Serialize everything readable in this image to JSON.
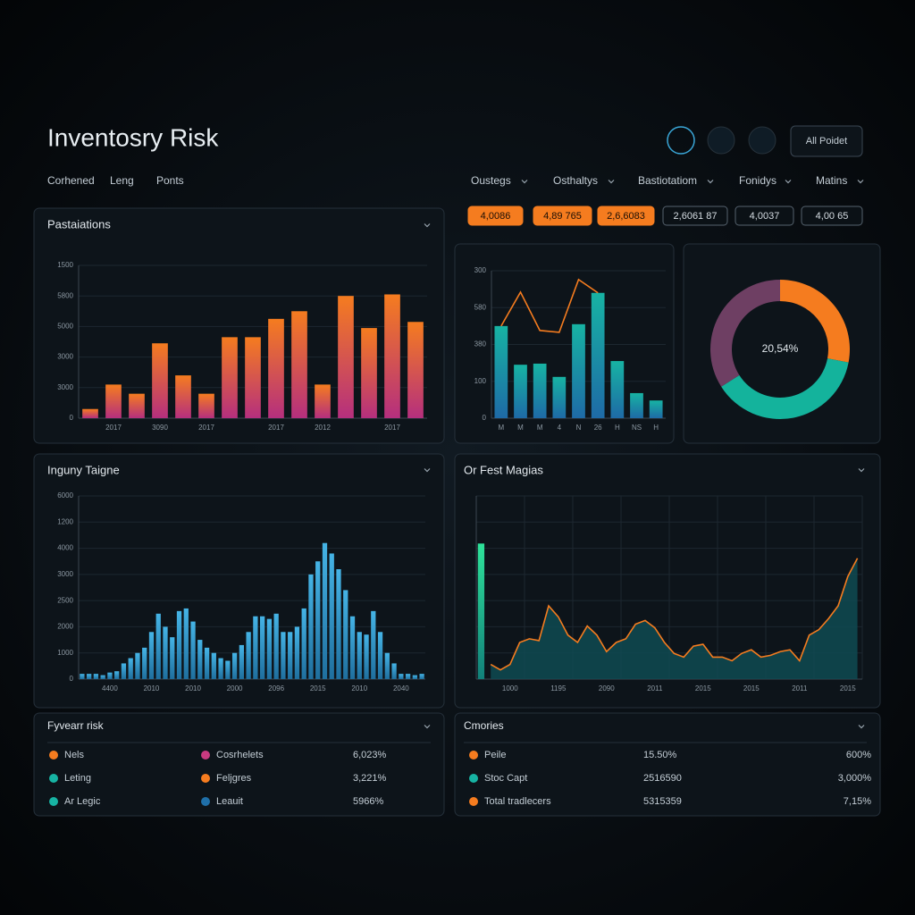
{
  "header": {
    "title": "Inventosry Risk",
    "nav": [
      "Corhened",
      "Leng",
      "Ponts"
    ],
    "button": "All Poidet"
  },
  "filters": [
    "Oustegs",
    "Osthaltys",
    "Bastiotatiom",
    "Fonidys",
    "Matins"
  ],
  "badges": [
    "4,0086",
    "4,89 765",
    "2,6,6083",
    "2,6061 87",
    "4,0037",
    "4,00 65"
  ],
  "chart_data": [
    {
      "type": "bar",
      "title": "Pastaiations",
      "color": "#f57c1f",
      "color2": "#b52f7e",
      "categories": [
        null,
        "2017",
        null,
        "3090",
        null,
        "2017",
        null,
        null,
        "2017",
        null,
        "2012",
        null,
        null,
        "2017",
        null
      ],
      "values": [
        300,
        1100,
        800,
        2450,
        1400,
        800,
        2650,
        2650,
        3250,
        3500,
        1100,
        4000,
        2950,
        4050,
        3150
      ],
      "ylim": [
        0,
        5000
      ],
      "yticks": [
        0,
        {
          "value": 1000,
          "label": "3000"
        },
        {
          "value": 2000,
          "label": "3000"
        },
        {
          "value": 3000,
          "label": "5000"
        },
        {
          "value": 4000,
          "label": "5800"
        },
        {
          "value": 5000,
          "label": "1500"
        }
      ],
      "grid": true
    },
    {
      "type": "bar",
      "categories": [
        "M",
        "M",
        "M",
        "4",
        "N",
        "26",
        "H",
        "NS",
        "H"
      ],
      "series": [
        {
          "kind": "bar",
          "color": "#17b3a3",
          "color2": "#1e6aa6",
          "values": [
            250,
            145,
            148,
            112,
            255,
            340,
            155,
            68,
            48
          ]
        },
        {
          "kind": "line",
          "color": "#f57c1f",
          "values": [
            250,
            342,
            238,
            233,
            376,
            340,
            null,
            null,
            null
          ]
        }
      ],
      "ylim": [
        0,
        400
      ],
      "yticks": [
        0,
        100,
        {
          "value": 200,
          "label": "380"
        },
        {
          "value": 300,
          "label": "580"
        },
        {
          "value": 400,
          "label": "300"
        }
      ],
      "grid": true
    },
    {
      "type": "pie",
      "center_label": "20,54%",
      "values": [
        28,
        38,
        34
      ],
      "colors": [
        "#f57c1f",
        "#14b39c",
        "#6e3f63"
      ]
    },
    {
      "type": "bar",
      "title": "Inguny Taigne",
      "color": "#45b4e6",
      "color2": "#1f6f9e",
      "categories": [
        null,
        null,
        null,
        null,
        "4400",
        null,
        null,
        null,
        null,
        null,
        "2010",
        null,
        null,
        null,
        null,
        null,
        "2010",
        null,
        null,
        null,
        null,
        null,
        "2000",
        null,
        null,
        null,
        null,
        null,
        "2096",
        null,
        null,
        null,
        null,
        null,
        "2015",
        null,
        null,
        null,
        null,
        null,
        "2010",
        null,
        null,
        null,
        null,
        null,
        "2040",
        null,
        null,
        null
      ],
      "values": [
        200,
        200,
        200,
        150,
        250,
        300,
        600,
        800,
        1000,
        1200,
        1800,
        2500,
        2000,
        1600,
        2600,
        2700,
        2200,
        1500,
        1200,
        1000,
        800,
        700,
        1000,
        1300,
        1800,
        2400,
        2400,
        2300,
        2500,
        1800,
        1800,
        2000,
        2700,
        4000,
        4500,
        5200,
        4800,
        4200,
        3400,
        2400,
        1800,
        1700,
        2600,
        1800,
        1000,
        600,
        200,
        200,
        150,
        200
      ],
      "ylim": [
        0,
        7000
      ],
      "yticks": [
        0,
        1000,
        2000,
        {
          "value": 3000,
          "label": "2500"
        },
        {
          "value": 4000,
          "label": "3000"
        },
        {
          "value": 5000,
          "label": "4000"
        },
        {
          "value": 6000,
          "label": "1200"
        },
        {
          "value": 7000,
          "label": "6000"
        }
      ],
      "grid": true
    },
    {
      "type": "area",
      "title": "Or Fest Magias",
      "categories": [
        null,
        null,
        null,
        "1000",
        null,
        null,
        null,
        null,
        "1195",
        null,
        null,
        null,
        null,
        "2090",
        null,
        null,
        null,
        null,
        "2011",
        null,
        null,
        null,
        null,
        "2015",
        null,
        null,
        null,
        null,
        "2015",
        null,
        null,
        null,
        null,
        "2011",
        null,
        null,
        null,
        null,
        "2015",
        null
      ],
      "series": [
        {
          "kind": "bar",
          "color": "#2ee39a",
          "color2": "#12807a",
          "values": [
            74,
            null,
            null,
            null,
            null,
            null,
            null,
            null,
            null,
            null,
            null,
            null,
            null,
            null,
            null,
            null,
            null,
            null,
            null,
            null,
            null,
            null,
            null,
            null,
            null,
            null,
            null,
            null,
            null,
            null,
            null,
            null,
            null,
            null,
            null,
            null,
            null,
            null,
            null,
            null
          ]
        },
        {
          "kind": "area",
          "color": "#f57c1f",
          "fill": "#0f4a52",
          "values": [
            null,
            8,
            5,
            8,
            20,
            22,
            21,
            40,
            34,
            24,
            20,
            29,
            24,
            15,
            20,
            22,
            30,
            32,
            28,
            20,
            14,
            12,
            18,
            19,
            12,
            12,
            10,
            14,
            16,
            12,
            13,
            15,
            16,
            10,
            24,
            27,
            33,
            40,
            56,
            66
          ]
        }
      ],
      "ylim": [
        0,
        100
      ]
    }
  ],
  "tables": [
    {
      "title": "Fyvearr risk",
      "rows": [
        [
          {
            "label": "Nels",
            "color": "#f57c1f"
          },
          {
            "label": "Cosrhelets",
            "color": "#c93a80"
          },
          {
            "label": "6,023%"
          }
        ],
        [
          {
            "label": "Leting",
            "color": "#17b3a3"
          },
          {
            "label": "Feljgres",
            "color": "#f57c1f"
          },
          {
            "label": "3,221%"
          }
        ],
        [
          {
            "label": "Ar Legic",
            "color": "#17b3a3"
          },
          {
            "label": "Leauit",
            "color": "#1f6fa8"
          },
          {
            "label": "5966%"
          }
        ]
      ]
    },
    {
      "title": "Cmories",
      "rows": [
        [
          {
            "label": "Peile",
            "color": "#f57c1f"
          },
          {
            "label": "15.50%"
          },
          {
            "label": "600%"
          }
        ],
        [
          {
            "label": "Stoc Capt",
            "color": "#17b3a3"
          },
          {
            "label": "2516590"
          },
          {
            "label": "3,000%"
          }
        ],
        [
          {
            "label": "Total tradlecers",
            "color": "#f57c1f"
          },
          {
            "label": "5315359"
          },
          {
            "label": "7,15%"
          }
        ]
      ]
    }
  ]
}
